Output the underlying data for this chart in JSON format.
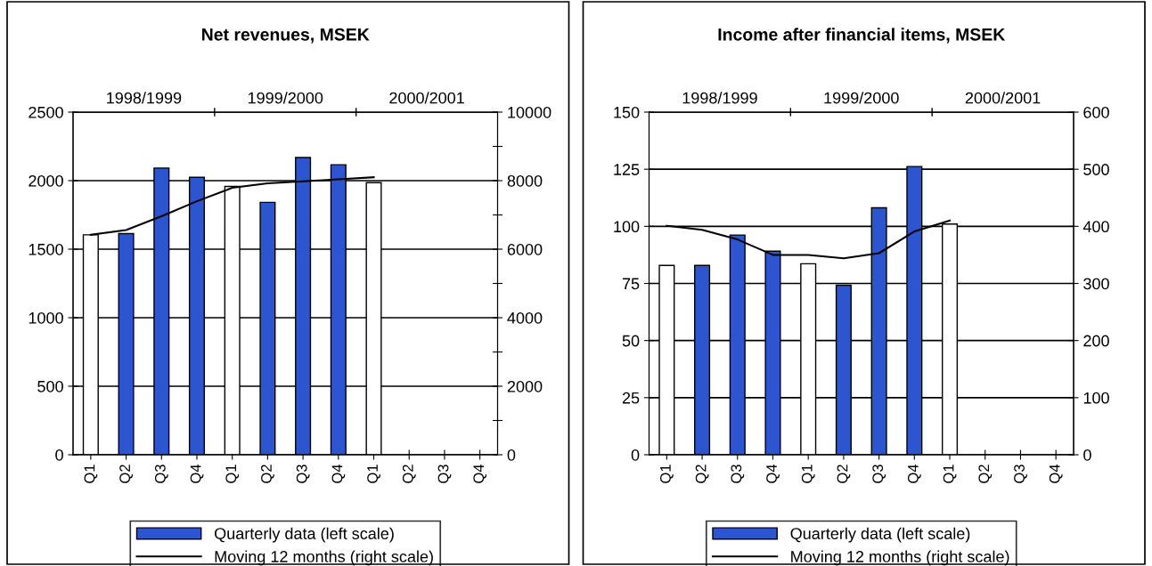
{
  "chart_data": [
    {
      "type": "bar",
      "title": "Net revenues, MSEK",
      "categories": [
        "Q1",
        "Q2",
        "Q3",
        "Q4",
        "Q1",
        "Q2",
        "Q3",
        "Q4",
        "Q1",
        "Q2",
        "Q3",
        "Q4"
      ],
      "series": [
        {
          "name": "Quarterly data (left scale)",
          "color": "#2d55d0",
          "colors": [
            "#ffffff",
            "#2d55d0",
            "#2d55d0",
            "#2d55d0",
            "#ffffff",
            "#2d55d0",
            "#2d55d0",
            "#2d55d0",
            "#ffffff",
            "#2d55d0",
            "#2d55d0",
            "#2d55d0"
          ],
          "values": [
            1605,
            1614,
            2092,
            2024,
            1958,
            1842,
            2169,
            2116,
            1985,
            null,
            null,
            null
          ]
        },
        {
          "name": "Moving 12 months (right scale)",
          "type": "line",
          "axis": "y2",
          "color": "#000000",
          "values": [
            6420,
            6560,
            6960,
            7400,
            7790,
            7920,
            7980,
            8040,
            8100,
            null,
            null,
            null
          ]
        }
      ],
      "ylim": [
        0,
        2500
      ],
      "yticks": [
        0,
        500,
        1000,
        1500,
        2000,
        2500
      ],
      "y2lim": [
        0,
        10000
      ],
      "y2ticks": [
        0,
        {
          "value": 1000,
          "label": null
        },
        2000,
        {
          "value": 3000,
          "label": null
        },
        4000,
        {
          "value": 5000,
          "label": null
        },
        6000,
        {
          "value": 7000,
          "label": null
        },
        8000,
        {
          "value": 9000,
          "label": null
        },
        10000
      ],
      "grid": "y",
      "legend": "bottom",
      "annotations": [
        "1998/1999",
        "1999/2000",
        "2000/2001"
      ]
    },
    {
      "type": "bar",
      "title": "Income after financial items, MSEK",
      "categories": [
        "Q1",
        "Q2",
        "Q3",
        "Q4",
        "Q1",
        "Q2",
        "Q3",
        "Q4",
        "Q1",
        "Q2",
        "Q3",
        "Q4"
      ],
      "series": [
        {
          "name": "Quarterly data (left scale)",
          "color": "#2d55d0",
          "colors": [
            "#ffffff",
            "#2d55d0",
            "#2d55d0",
            "#2d55d0",
            "#ffffff",
            "#2d55d0",
            "#2d55d0",
            "#2d55d0",
            "#ffffff",
            "#2d55d0",
            "#2d55d0",
            "#2d55d0"
          ],
          "values": [
            82.9,
            82.9,
            96.2,
            89.1,
            83.6,
            74.2,
            108.1,
            126.2,
            101.0,
            null,
            null,
            null
          ]
        },
        {
          "name": "Moving 12 months (right scale)",
          "type": "line",
          "axis": "y2",
          "color": "#000000",
          "values": [
            401,
            394,
            377,
            350,
            350,
            344,
            353,
            391,
            410,
            null,
            null,
            null
          ]
        }
      ],
      "ylim": [
        0,
        150
      ],
      "yticks": [
        0,
        25,
        50,
        75,
        100,
        125,
        150
      ],
      "y2lim": [
        0,
        600
      ],
      "y2ticks": [
        0,
        100,
        200,
        300,
        400,
        500,
        600
      ],
      "grid": "y",
      "legend": "bottom",
      "annotations": [
        "1998/1999",
        "1999/2000",
        "2000/2001"
      ]
    }
  ]
}
